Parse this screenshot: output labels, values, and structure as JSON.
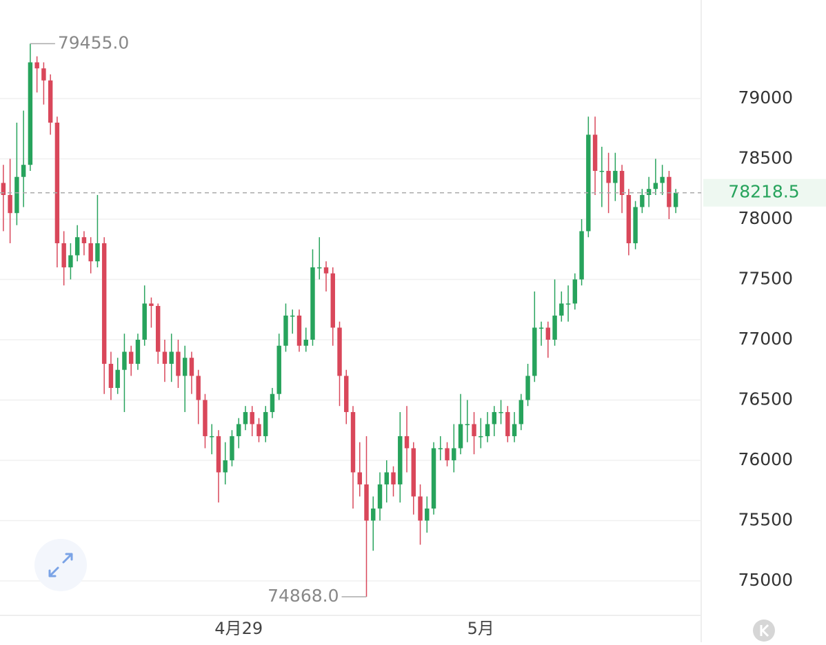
{
  "chart_data": {
    "type": "candlestick",
    "categories": [
      null,
      null,
      null,
      null,
      null,
      null,
      null,
      null,
      null,
      null,
      null,
      null,
      null,
      null,
      null,
      null,
      null,
      null,
      null,
      null,
      null,
      null,
      null,
      null,
      null,
      null,
      null,
      null,
      null,
      null,
      null,
      null,
      null,
      null,
      null,
      "4月29",
      null,
      null,
      null,
      null,
      null,
      null,
      null,
      null,
      null,
      null,
      null,
      null,
      null,
      null,
      null,
      null,
      null,
      null,
      null,
      null,
      null,
      null,
      null,
      null,
      null,
      null,
      null,
      null,
      null,
      null,
      null,
      null,
      null,
      null,
      null,
      "5月",
      null,
      null,
      null,
      null,
      null,
      null,
      null,
      null,
      null,
      null,
      null,
      null,
      null,
      null,
      null,
      null,
      null,
      null,
      null,
      null,
      null,
      null,
      null,
      null,
      null,
      null,
      null,
      null,
      null
    ],
    "open": [
      78300,
      78200,
      78050,
      78350,
      78450,
      79300,
      79250,
      79150,
      78800,
      77800,
      77600,
      77700,
      77850,
      77800,
      77650,
      77800,
      76800,
      76600,
      76750,
      76900,
      76800,
      77000,
      77300,
      77280,
      76900,
      76800,
      76900,
      76700,
      76850,
      76700,
      76500,
      76200,
      76200,
      75900,
      76000,
      76200,
      76300,
      76400,
      76300,
      76200,
      76400,
      76550,
      76950,
      77200,
      77200,
      76950,
      77000,
      77600,
      77600,
      77550,
      77100,
      76700,
      76400,
      75900,
      75800,
      75500,
      75600,
      75800,
      75900,
      75800,
      76200,
      76100,
      75700,
      75500,
      75600,
      76100,
      76100,
      76000,
      76100,
      76300,
      76300,
      76200,
      76200,
      76300,
      76400,
      76400,
      76200,
      76300,
      76500,
      76700,
      77100,
      77100,
      77000,
      77200,
      77300,
      77300,
      77500,
      77900,
      78700,
      78400,
      78400,
      78300,
      78400,
      78200,
      77800,
      78100,
      78200,
      78250,
      78300,
      78350,
      78100
    ],
    "high": [
      78450,
      78500,
      78800,
      78900,
      79455,
      79350,
      79300,
      79200,
      78850,
      77900,
      77800,
      77950,
      77900,
      77850,
      78200,
      77850,
      76900,
      76850,
      77050,
      76950,
      77050,
      77450,
      77350,
      77300,
      77000,
      77050,
      77000,
      76950,
      76900,
      76750,
      76550,
      76300,
      76250,
      76150,
      76250,
      76350,
      76450,
      76450,
      76350,
      76450,
      76600,
      77050,
      77300,
      77250,
      77250,
      77100,
      77750,
      77850,
      77650,
      77600,
      77150,
      76750,
      76450,
      76150,
      76200,
      75700,
      75900,
      76000,
      75950,
      76400,
      76450,
      76150,
      75800,
      75700,
      76150,
      76200,
      76150,
      76300,
      76550,
      76500,
      76400,
      76350,
      76400,
      76450,
      76500,
      76450,
      76400,
      76550,
      76800,
      77400,
      77150,
      77150,
      77500,
      77400,
      77450,
      77550,
      78000,
      78850,
      78850,
      78600,
      78550,
      78550,
      78450,
      78250,
      78150,
      78250,
      78350,
      78500,
      78450,
      78400,
      78250
    ],
    "low": [
      77900,
      77800,
      77950,
      78100,
      78400,
      79050,
      78950,
      78700,
      77600,
      77450,
      77500,
      77650,
      77700,
      77550,
      77600,
      76550,
      76500,
      76550,
      76400,
      76700,
      76750,
      76950,
      77100,
      76800,
      76650,
      76650,
      76600,
      76400,
      76550,
      76300,
      76100,
      76050,
      75650,
      75800,
      75950,
      76100,
      76250,
      76200,
      76150,
      76150,
      76350,
      76500,
      76900,
      77050,
      76900,
      76900,
      76950,
      77500,
      77400,
      76950,
      76450,
      76300,
      75600,
      75700,
      74868,
      75250,
      75500,
      75650,
      75700,
      75650,
      75900,
      75550,
      75300,
      75400,
      75550,
      76000,
      75950,
      75900,
      76050,
      76150,
      76050,
      76100,
      76150,
      76200,
      76300,
      76150,
      76150,
      76250,
      76450,
      76650,
      76950,
      76850,
      76950,
      77150,
      77150,
      77250,
      77450,
      77850,
      78200,
      78100,
      78050,
      78150,
      78050,
      77700,
      77750,
      78050,
      78100,
      78200,
      78200,
      78000,
      78050
    ],
    "close": [
      78200,
      78050,
      78350,
      78450,
      79300,
      79250,
      79150,
      78800,
      77800,
      77600,
      77700,
      77850,
      77800,
      77650,
      77800,
      76800,
      76600,
      76750,
      76900,
      76800,
      77000,
      77300,
      77280,
      76900,
      76800,
      76900,
      76700,
      76850,
      76700,
      76500,
      76200,
      76200,
      75900,
      76000,
      76200,
      76300,
      76400,
      76300,
      76200,
      76400,
      76550,
      76950,
      77200,
      77200,
      76950,
      77000,
      77600,
      77600,
      77550,
      77100,
      76700,
      76400,
      75900,
      75800,
      75500,
      75600,
      75800,
      75900,
      75800,
      76200,
      76100,
      75700,
      75500,
      75600,
      76100,
      76100,
      76000,
      76100,
      76300,
      76300,
      76200,
      76200,
      76300,
      76400,
      76400,
      76200,
      76300,
      76500,
      76700,
      77100,
      77100,
      77000,
      77200,
      77300,
      77300,
      77500,
      77900,
      78700,
      78400,
      78400,
      78300,
      78400,
      78200,
      77800,
      78100,
      78200,
      78250,
      78300,
      78350,
      78100,
      78218.5
    ],
    "up_color": "#27a35c",
    "down_color": "#d9475a",
    "last_price_color": "#27a35c",
    "ylim": [
      74714,
      79817
    ],
    "yticks": [
      75000,
      75500,
      76000,
      76500,
      77000,
      77500,
      78000,
      78500,
      79000
    ],
    "grid": true,
    "last_price": 78218.5,
    "max_label": {
      "value": 79455,
      "label": "79455.0"
    },
    "min_label": {
      "value": 74868,
      "label": "74868.0"
    }
  }
}
